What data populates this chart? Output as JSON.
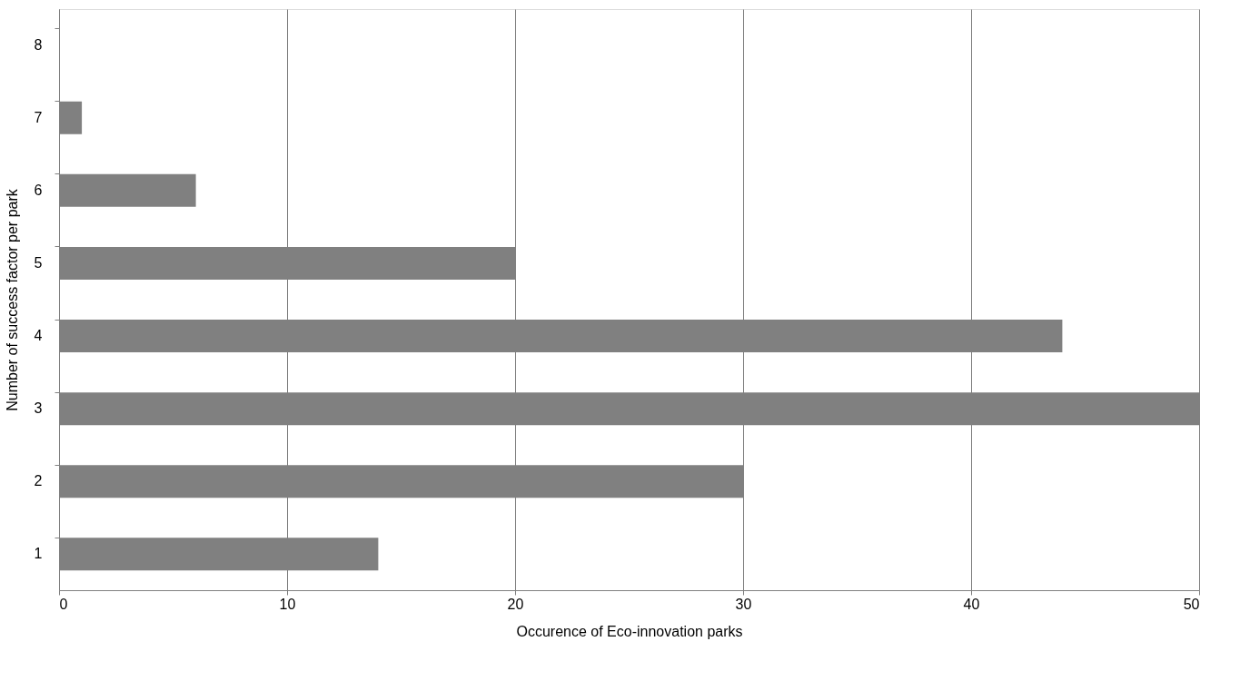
{
  "chart_data": {
    "type": "bar",
    "orientation": "horizontal",
    "xlabel": "Occurence of Eco-innovation parks",
    "ylabel": "Number of success factor per park",
    "categories": [
      "8",
      "7",
      "6",
      "5",
      "4",
      "3",
      "2",
      "1"
    ],
    "values": [
      0,
      1,
      6,
      20,
      44,
      50,
      30,
      14
    ],
    "color": "#808080",
    "xlim": [
      0,
      50
    ],
    "xticks": [
      0,
      10,
      20,
      30,
      40,
      50
    ],
    "grid": "x"
  }
}
